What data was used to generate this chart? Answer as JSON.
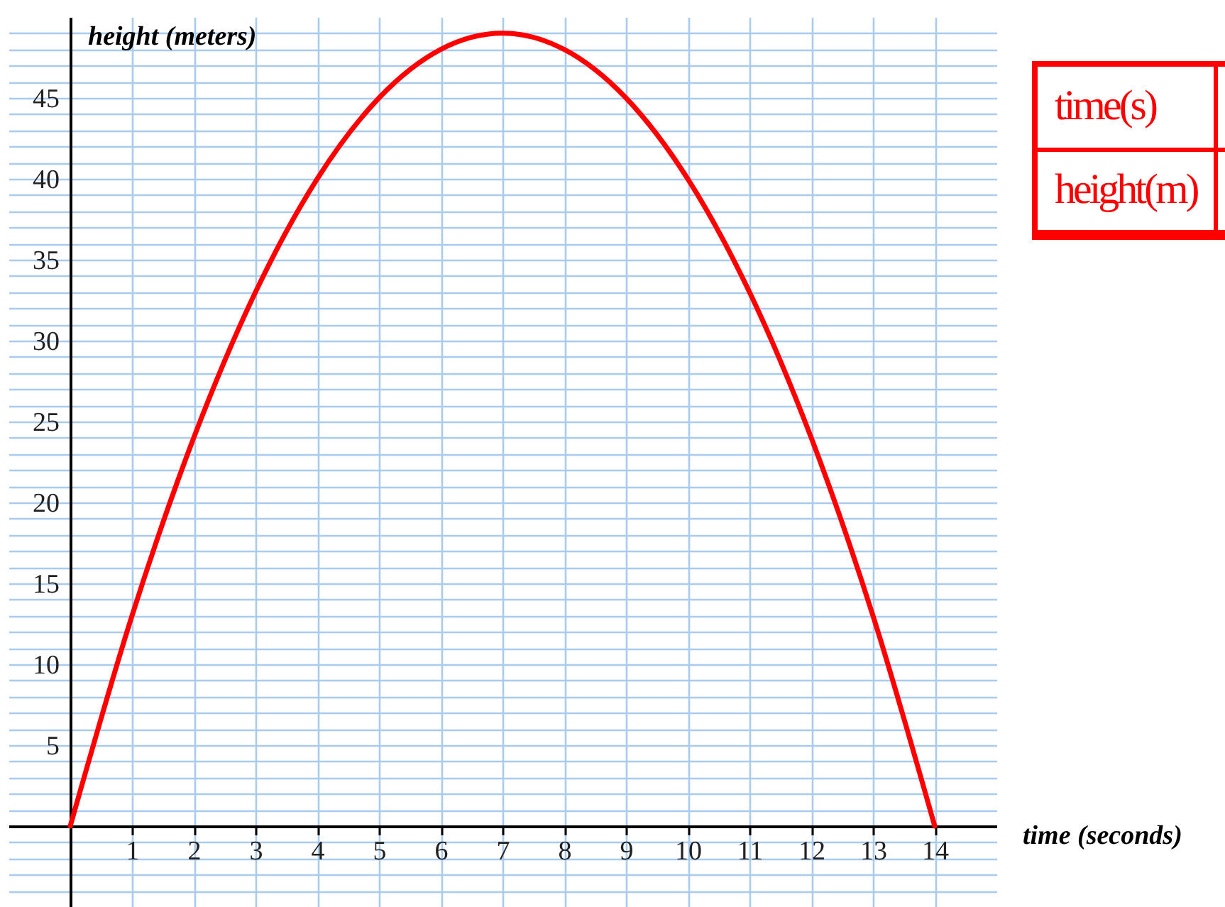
{
  "chart_data": {
    "type": "line",
    "xlabel": "time (seconds)",
    "ylabel": "height (meters)",
    "x": [
      0,
      1,
      2,
      3,
      4,
      5,
      6,
      7,
      8,
      9,
      10,
      11,
      12,
      13,
      14
    ],
    "series": [
      {
        "color": "#ff0000",
        "values": [
          0,
          13,
          24,
          33,
          40,
          45,
          48,
          49,
          48,
          45,
          40,
          33,
          24,
          13,
          0
        ]
      }
    ],
    "xlim": [
      -1,
      15
    ],
    "xticks": [
      1,
      2,
      3,
      4,
      5,
      6,
      7,
      8,
      9,
      10,
      11,
      12,
      13,
      14
    ],
    "ylim": [
      -5,
      50
    ],
    "yticks": [
      {
        "value": -4,
        "label": null
      },
      {
        "value": -3,
        "label": null
      },
      {
        "value": -2,
        "label": null
      },
      {
        "value": -1,
        "label": null
      },
      {
        "value": 0,
        "label": null
      },
      {
        "value": 1,
        "label": null
      },
      {
        "value": 2,
        "label": null
      },
      {
        "value": 3,
        "label": null
      },
      {
        "value": 4,
        "label": null
      },
      5,
      {
        "value": 6,
        "label": null
      },
      {
        "value": 7,
        "label": null
      },
      {
        "value": 8,
        "label": null
      },
      {
        "value": 9,
        "label": null
      },
      10,
      {
        "value": 11,
        "label": null
      },
      {
        "value": 12,
        "label": null
      },
      {
        "value": 13,
        "label": null
      },
      {
        "value": 14,
        "label": null
      },
      15,
      {
        "value": 16,
        "label": null
      },
      {
        "value": 17,
        "label": null
      },
      {
        "value": 18,
        "label": null
      },
      {
        "value": 19,
        "label": null
      },
      20,
      {
        "value": 21,
        "label": null
      },
      {
        "value": 22,
        "label": null
      },
      {
        "value": 23,
        "label": null
      },
      {
        "value": 24,
        "label": null
      },
      25,
      {
        "value": 26,
        "label": null
      },
      {
        "value": 27,
        "label": null
      },
      {
        "value": 28,
        "label": null
      },
      {
        "value": 29,
        "label": null
      },
      30,
      {
        "value": 31,
        "label": null
      },
      {
        "value": 32,
        "label": null
      },
      {
        "value": 33,
        "label": null
      },
      {
        "value": 34,
        "label": null
      },
      35,
      {
        "value": 36,
        "label": null
      },
      {
        "value": 37,
        "label": null
      },
      {
        "value": 38,
        "label": null
      },
      {
        "value": 39,
        "label": null
      },
      40,
      {
        "value": 41,
        "label": null
      },
      {
        "value": 42,
        "label": null
      },
      {
        "value": 43,
        "label": null
      },
      {
        "value": 44,
        "label": null
      },
      45,
      {
        "value": 46,
        "label": null
      },
      {
        "value": 47,
        "label": null
      },
      {
        "value": 48,
        "label": null
      },
      {
        "value": 49,
        "label": null
      }
    ],
    "grid": true,
    "line_style": "solid",
    "annotations": [
      "time(s)",
      "height(m)"
    ]
  }
}
